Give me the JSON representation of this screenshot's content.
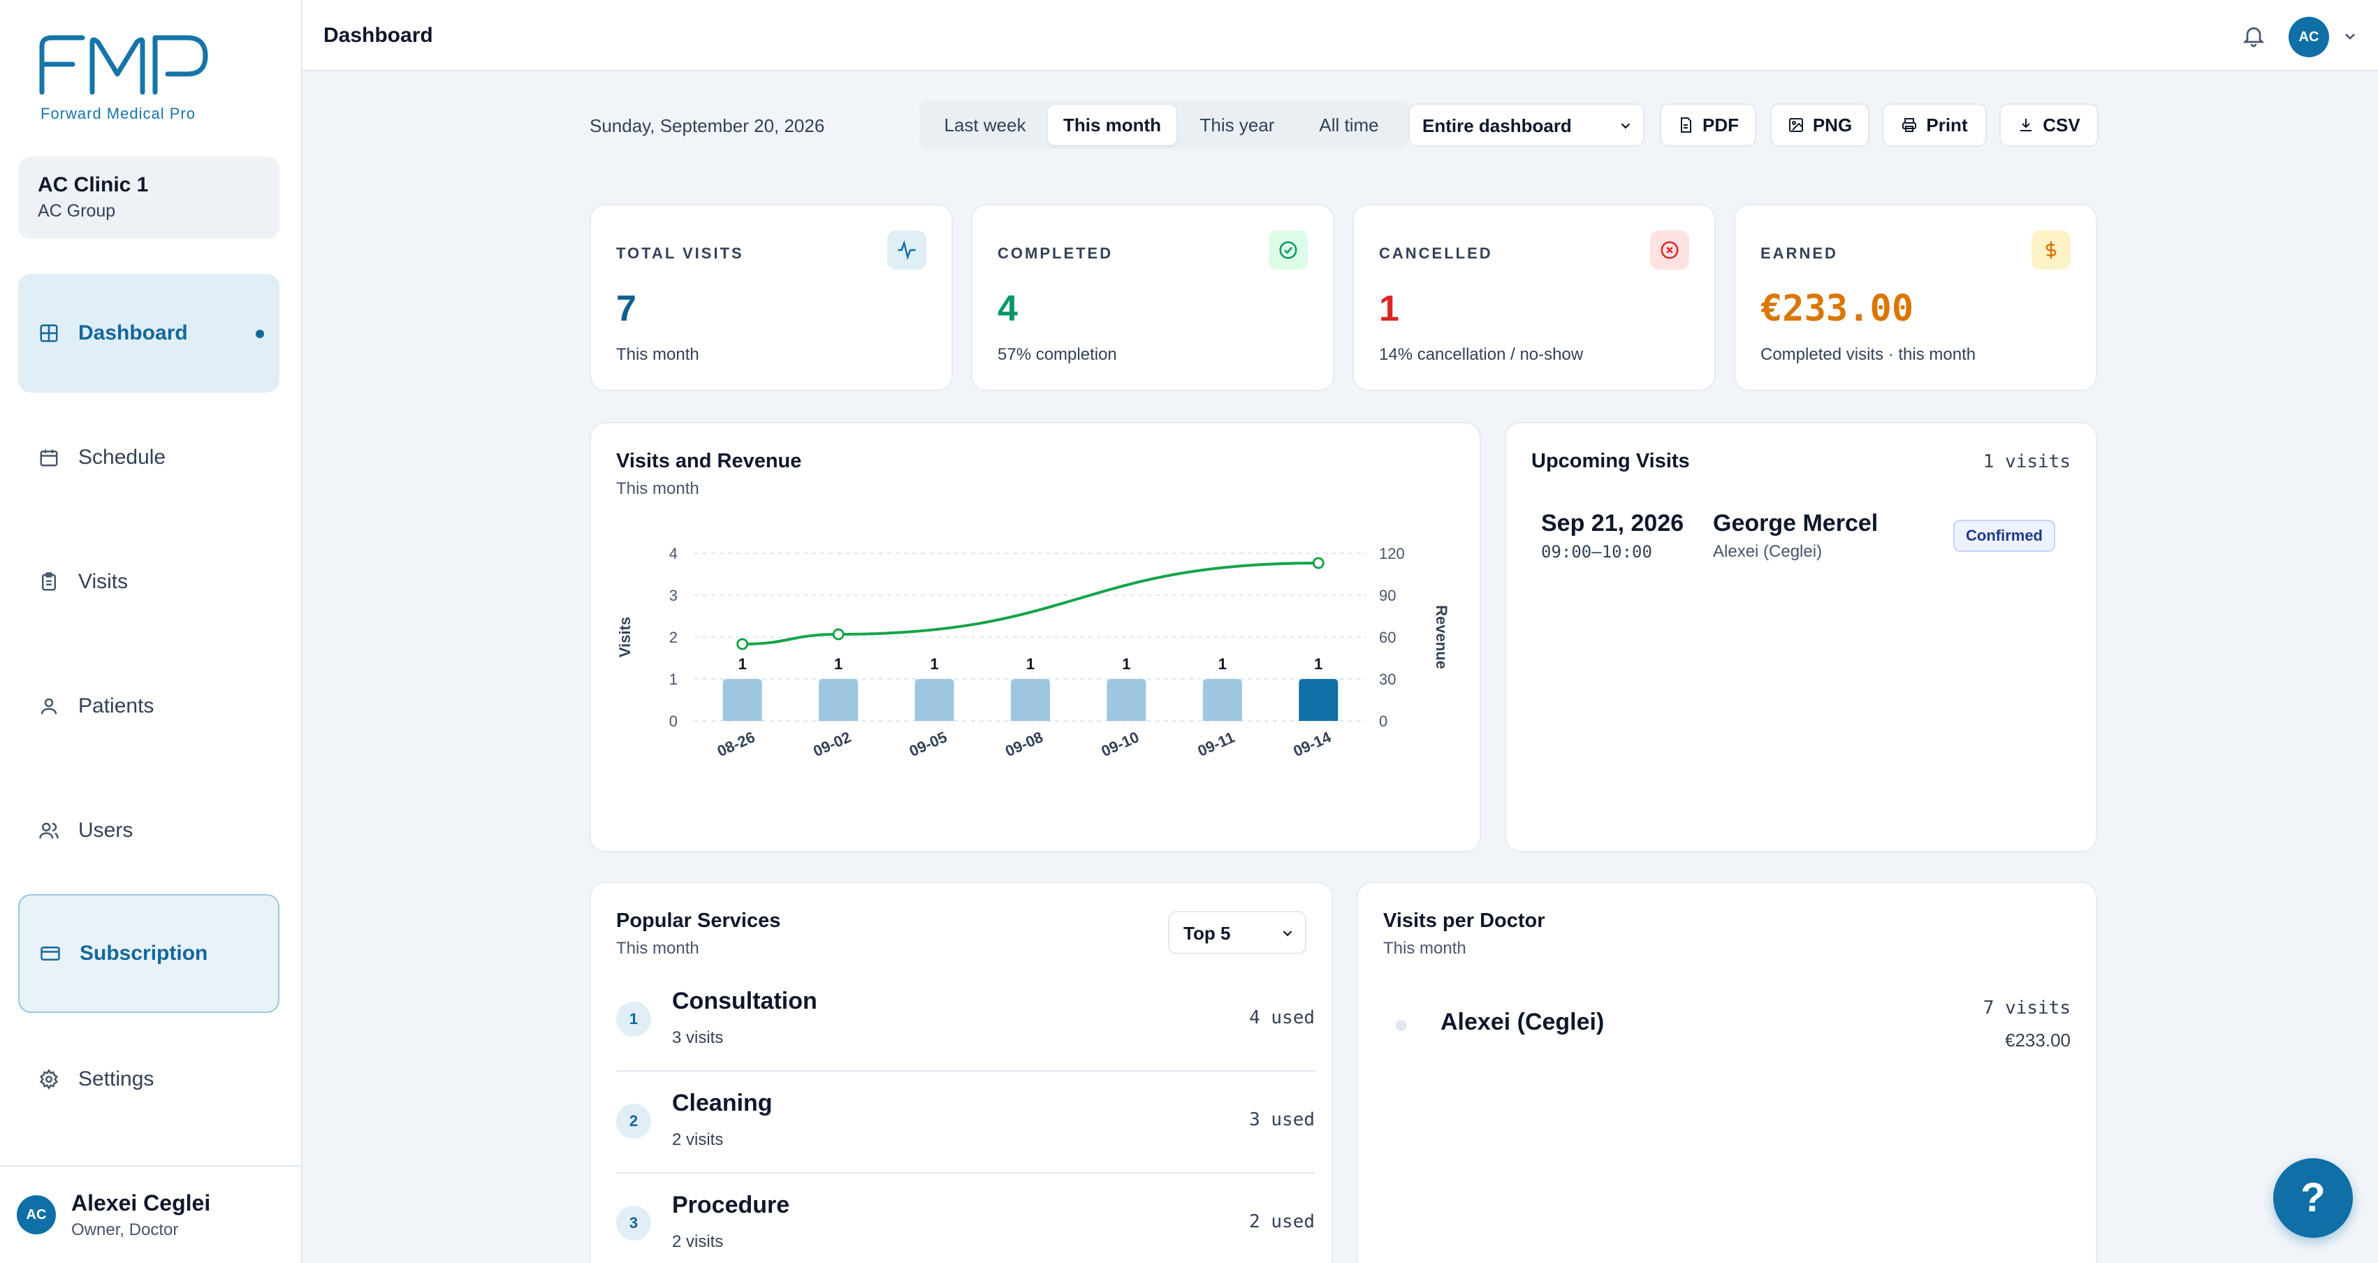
{
  "brand": {
    "logo_text": "FMP",
    "logo_subtitle": "Forward Medical Pro",
    "accent": "#0f6fa6"
  },
  "clinic": {
    "name": "AC Clinic 1",
    "group": "AC Group"
  },
  "nav": {
    "items": [
      {
        "label": "Dashboard",
        "icon": "grid-icon",
        "active": true
      },
      {
        "label": "Schedule",
        "icon": "calendar-icon"
      },
      {
        "label": "Visits",
        "icon": "clipboard-icon"
      },
      {
        "label": "Patients",
        "icon": "user-icon"
      },
      {
        "label": "Users",
        "icon": "users-icon"
      },
      {
        "label": "Subscription",
        "icon": "credit-card-icon"
      },
      {
        "label": "Settings",
        "icon": "gear-icon"
      }
    ]
  },
  "user": {
    "initials": "AC",
    "name": "Alexei Ceglei",
    "role": "Owner, Doctor"
  },
  "header": {
    "title": "Dashboard",
    "avatar_initials": "AC"
  },
  "toolbar": {
    "date": "Sunday, September 20, 2026",
    "ranges": [
      {
        "label": "Last week"
      },
      {
        "label": "This month",
        "selected": true
      },
      {
        "label": "This year"
      },
      {
        "label": "All time"
      }
    ],
    "scope": "Entire dashboard",
    "export": {
      "pdf": "PDF",
      "png": "PNG",
      "print": "Print",
      "csv": "CSV"
    }
  },
  "stats": [
    {
      "label": "TOTAL VISITS",
      "value": "7",
      "sub": "This month",
      "color": "#0f5f8e",
      "icon": "activity-icon"
    },
    {
      "label": "COMPLETED",
      "value": "4",
      "sub": "57% completion",
      "color": "#059669",
      "icon": "check-circle-icon"
    },
    {
      "label": "CANCELLED",
      "value": "1",
      "sub": "14% cancellation / no-show",
      "color": "#dc2626",
      "icon": "x-circle-icon"
    },
    {
      "label": "EARNED",
      "value": "€233.00",
      "sub": "Completed visits · this month",
      "color": "#d97706",
      "icon": "dollar-icon"
    }
  ],
  "chart_card": {
    "title": "Visits and Revenue",
    "subtitle": "This month"
  },
  "chart_data": {
    "type": "bar",
    "categories": [
      "08-26",
      "09-02",
      "09-05",
      "09-08",
      "09-10",
      "09-11",
      "09-14"
    ],
    "series": [
      {
        "name": "Visits",
        "type": "bar",
        "axis": "left",
        "values": [
          1,
          1,
          1,
          1,
          1,
          1,
          1
        ],
        "highlight_index": 6
      },
      {
        "name": "Revenue",
        "type": "line",
        "axis": "right",
        "points": [
          {
            "category": "08-26",
            "value": 55
          },
          {
            "category": "09-02",
            "value": 62
          },
          {
            "category": "09-14",
            "value": 113
          }
        ]
      }
    ],
    "ylabel": "Visits",
    "y2label": "Revenue",
    "ylim": [
      0,
      4
    ],
    "yticks": [
      0,
      1,
      2,
      3,
      4
    ],
    "y2lim": [
      0,
      120
    ],
    "y2ticks": [
      0,
      30,
      60,
      90,
      120
    ],
    "grid": true,
    "colors": {
      "bar": "#9ec6de",
      "bar_highlight": "#0f6fa6",
      "line": "#16a34a"
    }
  },
  "upcoming": {
    "title": "Upcoming Visits",
    "count": "1 visits",
    "items": [
      {
        "date": "Sep 21, 2026",
        "time": "09:00–10:00",
        "patient": "George Mercel",
        "doctor": "Alexei (Ceglei)",
        "status": "Confirmed"
      }
    ]
  },
  "services": {
    "title": "Popular Services",
    "subtitle": "This month",
    "filter": "Top 5",
    "items": [
      {
        "rank": "1",
        "name": "Consultation",
        "visits": "3 visits",
        "used": "4 used"
      },
      {
        "rank": "2",
        "name": "Cleaning",
        "visits": "2 visits",
        "used": "3 used"
      },
      {
        "rank": "3",
        "name": "Procedure",
        "visits": "2 visits",
        "used": "2 used"
      }
    ]
  },
  "doctors": {
    "title": "Visits per Doctor",
    "subtitle": "This month",
    "items": [
      {
        "name": "Alexei (Ceglei)",
        "visits": "7 visits",
        "earned": "€233.00"
      }
    ]
  },
  "help": {
    "label": "?"
  }
}
